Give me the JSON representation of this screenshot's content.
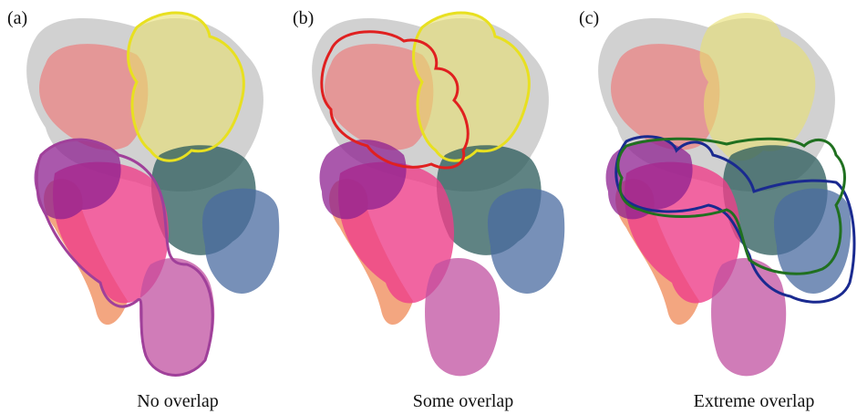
{
  "panels": [
    {
      "label": "(a)",
      "caption": "No overlap"
    },
    {
      "label": "(b)",
      "caption": "Some overlap"
    },
    {
      "label": "(c)",
      "caption": "Extreme overlap"
    }
  ]
}
